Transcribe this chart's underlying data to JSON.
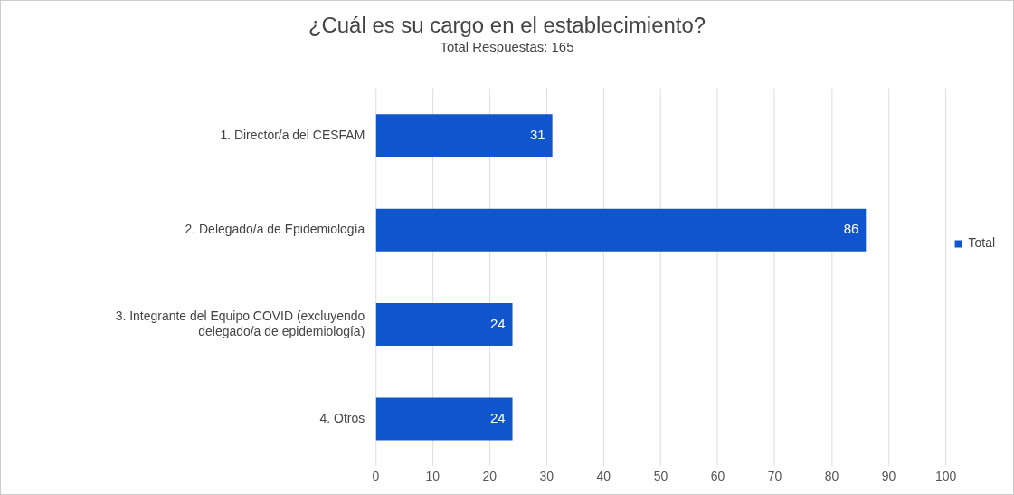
{
  "chart_data": {
    "type": "bar",
    "orientation": "horizontal",
    "title": "¿Cuál es su cargo en el establecimiento?",
    "subtitle": "Total Respuestas: 165",
    "categories": [
      "1. Director/a del CESFAM",
      "2. Delegado/a de Epidemiología",
      "3. Integrante del Equipo COVID (excluyendo delegado/a de epidemiología)",
      "4. Otros"
    ],
    "series": [
      {
        "name": "Total",
        "color": "#1155cc",
        "values": [
          31,
          86,
          24,
          24
        ]
      }
    ],
    "xlim": [
      0,
      100
    ],
    "xticks": [
      0,
      10,
      20,
      30,
      40,
      50,
      60,
      70,
      80,
      90,
      100
    ],
    "grid": "x",
    "legend": "right",
    "data_labels": true
  }
}
